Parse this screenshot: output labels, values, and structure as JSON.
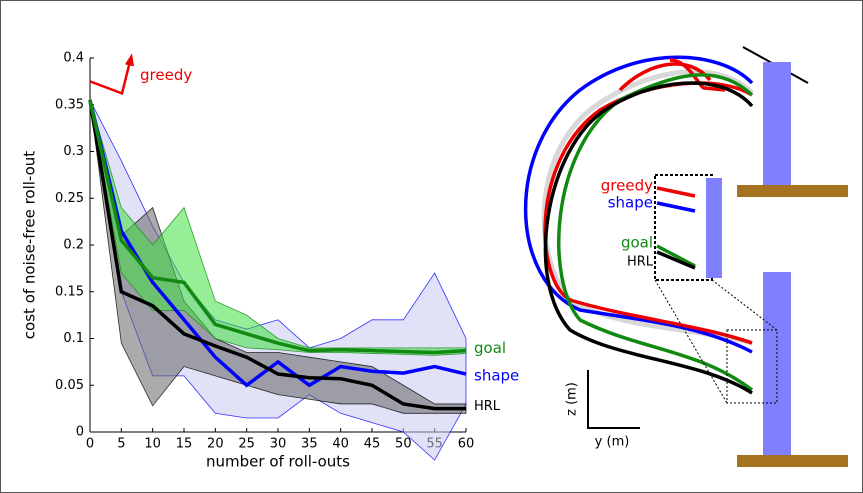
{
  "chart_data": {
    "type": "line",
    "x_label": "number of roll-outs",
    "y_label": "cost of noise-free roll-out",
    "x": [
      0,
      5,
      10,
      15,
      20,
      25,
      30,
      35,
      40,
      45,
      50,
      55,
      60
    ],
    "xlim": [
      0,
      60
    ],
    "ylim": [
      0,
      0.4
    ],
    "xticks": [
      0,
      5,
      10,
      15,
      20,
      25,
      30,
      35,
      40,
      45,
      50,
      55,
      60
    ],
    "yticks": [
      0,
      0.05,
      0.1,
      0.15,
      0.2,
      0.25,
      0.3,
      0.35,
      0.4
    ],
    "series": [
      {
        "name": "shape",
        "color": "#0000ff",
        "band_color": "#c8c8f0",
        "values": [
          0.355,
          0.215,
          0.16,
          0.12,
          0.08,
          0.05,
          0.075,
          0.05,
          0.07,
          0.065,
          0.063,
          0.07,
          0.062
        ],
        "upper": [
          0.355,
          0.29,
          0.22,
          0.16,
          0.12,
          0.11,
          0.12,
          0.09,
          0.1,
          0.12,
          0.12,
          0.17,
          0.1
        ],
        "lower": [
          0.355,
          0.15,
          0.06,
          0.06,
          0.02,
          0.015,
          0.015,
          0.04,
          0.02,
          0.01,
          0.0,
          -0.03,
          0.03
        ]
      },
      {
        "name": "HRL",
        "color": "#000000",
        "band_color": "#666666",
        "values": [
          0.355,
          0.15,
          0.135,
          0.105,
          0.092,
          0.08,
          0.062,
          0.058,
          0.057,
          0.05,
          0.03,
          0.025,
          0.025
        ],
        "upper": [
          0.355,
          0.21,
          0.24,
          0.14,
          0.1,
          0.085,
          0.085,
          0.08,
          0.075,
          0.07,
          0.05,
          0.03,
          0.03
        ],
        "lower": [
          0.355,
          0.095,
          0.028,
          0.07,
          0.06,
          0.05,
          0.04,
          0.035,
          0.03,
          0.03,
          0.02,
          0.02,
          0.02
        ]
      },
      {
        "name": "goal",
        "color": "#128a12",
        "band_color": "#3fe03f",
        "values": [
          0.355,
          0.205,
          0.165,
          0.16,
          0.115,
          0.105,
          0.095,
          0.087,
          0.088,
          0.087,
          0.086,
          0.085,
          0.087
        ],
        "upper": [
          0.355,
          0.24,
          0.2,
          0.24,
          0.14,
          0.125,
          0.1,
          0.09,
          0.09,
          0.09,
          0.09,
          0.09,
          0.09
        ],
        "lower": [
          0.355,
          0.17,
          0.13,
          0.13,
          0.1,
          0.09,
          0.088,
          0.085,
          0.085,
          0.084,
          0.083,
          0.082,
          0.084
        ]
      },
      {
        "name": "greedy",
        "color": "#ee0000",
        "values": [
          0.375,
          null,
          null,
          null,
          null,
          null,
          null,
          null,
          null,
          null,
          null,
          null,
          null
        ]
      }
    ]
  },
  "diagram": {
    "inset_labels": [
      "greedy",
      "shape",
      "goal",
      "HRL"
    ],
    "z_axis": "z (m)",
    "y_axis": "y (m)"
  }
}
